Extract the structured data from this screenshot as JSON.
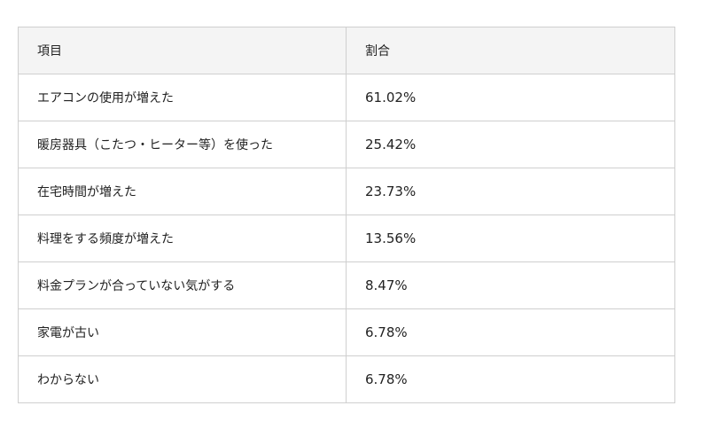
{
  "table": {
    "headers": [
      "項目",
      "割合"
    ],
    "rows": [
      [
        "エアコンの使用が増えた",
        "61.02%"
      ],
      [
        "暖房器具（こたつ・ヒーター等）を使った",
        "25.42%"
      ],
      [
        "在宅時間が増えた",
        "23.73%"
      ],
      [
        "料理をする頻度が増えた",
        "13.56%"
      ],
      [
        "料金プランが合っていない気がする",
        "8.47%"
      ],
      [
        "家電が古い",
        "6.78%"
      ],
      [
        "わからない",
        "6.78%"
      ]
    ]
  }
}
